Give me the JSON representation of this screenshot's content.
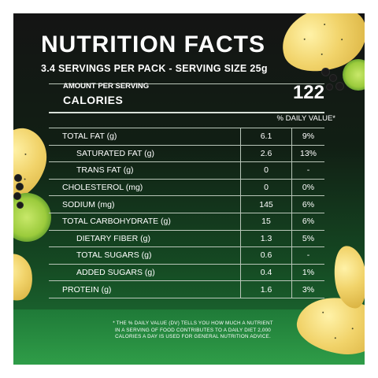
{
  "header": {
    "title": "NUTRITION FACTS",
    "servings": "3.4 SERVINGS PER PACK  - SERVING SIZE 25g"
  },
  "calories": {
    "amount_label": "AMOUNT PER SERVING",
    "label": "CALORIES",
    "value": "122"
  },
  "dv_header": "% DAILY VALUE*",
  "rows": [
    {
      "name": "TOTAL FAT (g)",
      "amount": "6.1",
      "dv": "9%",
      "sub": false
    },
    {
      "name": "SATURATED FAT (g)",
      "amount": "2.6",
      "dv": "13%",
      "sub": true
    },
    {
      "name": "TRANS FAT (g)",
      "amount": "0",
      "dv": "-",
      "sub": true
    },
    {
      "name": "CHOLESTEROL (mg)",
      "amount": "0",
      "dv": "0%",
      "sub": false
    },
    {
      "name": "SODIUM (mg)",
      "amount": "145",
      "dv": "6%",
      "sub": false
    },
    {
      "name": "TOTAL CARBOHYDRATE (g)",
      "amount": "15",
      "dv": "6%",
      "sub": false
    },
    {
      "name": "DIETARY FIBER (g)",
      "amount": "1.3",
      "dv": "5%",
      "sub": true
    },
    {
      "name": "TOTAL SUGARS (g)",
      "amount": "0.6",
      "dv": "-",
      "sub": true
    },
    {
      "name": "ADDED SUGARS (g)",
      "amount": "0.4",
      "dv": "1%",
      "sub": true
    },
    {
      "name": "PROTEIN (g)",
      "amount": "1.6",
      "dv": "3%",
      "sub": false
    }
  ],
  "footnote": {
    "line1": "* THE % DAILY VALUE (DV) TELLS YOU HOW MUCH A NUTRIENT",
    "line2": "IN A SERVING OF FOOD CONTRIBUTES TO A DAILY DIET 2,000",
    "line3": "CALORIES A DAY IS USED FOR GENERAL NUTRITION ADVICE."
  },
  "colors": {
    "background_top": "#141414",
    "background_bottom": "#2f9d48",
    "text": "#ffffff"
  },
  "decorations": [
    "chip-icon",
    "lime-slice-icon",
    "peppercorn-icon"
  ]
}
